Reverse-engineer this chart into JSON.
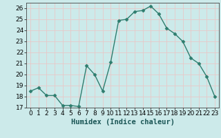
{
  "x": [
    0,
    1,
    2,
    3,
    4,
    5,
    6,
    7,
    8,
    9,
    10,
    11,
    12,
    13,
    14,
    15,
    16,
    17,
    18,
    19,
    20,
    21,
    22,
    23
  ],
  "y": [
    18.5,
    18.8,
    18.1,
    18.1,
    17.2,
    17.2,
    17.1,
    20.8,
    20.0,
    18.5,
    21.1,
    24.9,
    25.0,
    25.7,
    25.8,
    26.2,
    25.5,
    24.2,
    23.7,
    23.0,
    21.5,
    21.0,
    19.8,
    18.0
  ],
  "line_color": "#2e7d6e",
  "marker": "D",
  "markersize": 2.5,
  "linewidth": 1.0,
  "xlabel": "Humidex (Indice chaleur)",
  "xlim": [
    -0.5,
    23.5
  ],
  "ylim": [
    17,
    26.5
  ],
  "yticks": [
    17,
    18,
    19,
    20,
    21,
    22,
    23,
    24,
    25,
    26
  ],
  "xtick_labels": [
    "0",
    "1",
    "2",
    "3",
    "4",
    "5",
    "6",
    "7",
    "8",
    "9",
    "10",
    "11",
    "12",
    "13",
    "14",
    "15",
    "16",
    "17",
    "18",
    "19",
    "20",
    "21",
    "22",
    "23"
  ],
  "bg_color": "#cceaea",
  "grid_color": "#e8c8c8",
  "tick_fontsize": 6.5,
  "xlabel_fontsize": 7.5
}
